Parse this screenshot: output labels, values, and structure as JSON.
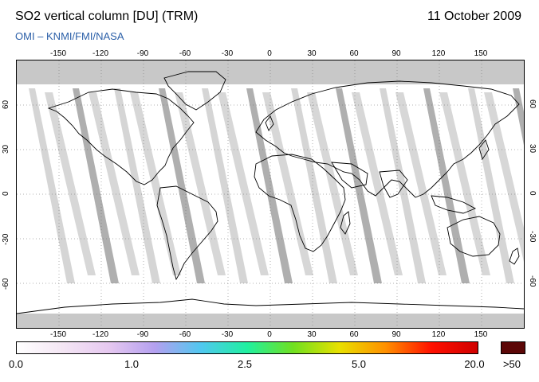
{
  "header": {
    "title": "SO2 vertical column [DU] (TRM)",
    "date": "11 October 2009",
    "credit": "OMI  –  KNMI/FMI/NASA"
  },
  "map": {
    "projection": "equirectangular",
    "lon_range": [
      -180,
      180
    ],
    "lat_range": [
      -90,
      90
    ],
    "lon_ticks": [
      "-150",
      "-120",
      "-90",
      "-60",
      "-30",
      "0",
      "30",
      "60",
      "90",
      "120",
      "150"
    ],
    "lat_ticks": [
      "60",
      "30",
      "0",
      "-30",
      "-60"
    ],
    "ocean_color": "#ffffff",
    "land_outline_color": "#000000",
    "no_data_color": "#c8c8c8",
    "swath_dark_color": "#a6a6a6",
    "swath_light_color": "#d0d0d0"
  },
  "colorbar": {
    "labels": [
      "0.0",
      "1.0",
      "2.5",
      "5.0",
      "20.0"
    ],
    "over_label": ">50",
    "over_color": "#5c0707",
    "colors": [
      "#ffffff",
      "#f4e6f4",
      "#e6c8f0",
      "#b4a0f0",
      "#50c8f0",
      "#20f0a0",
      "#70e020",
      "#e8e000",
      "#ff9000",
      "#ff1000",
      "#d00000"
    ]
  }
}
